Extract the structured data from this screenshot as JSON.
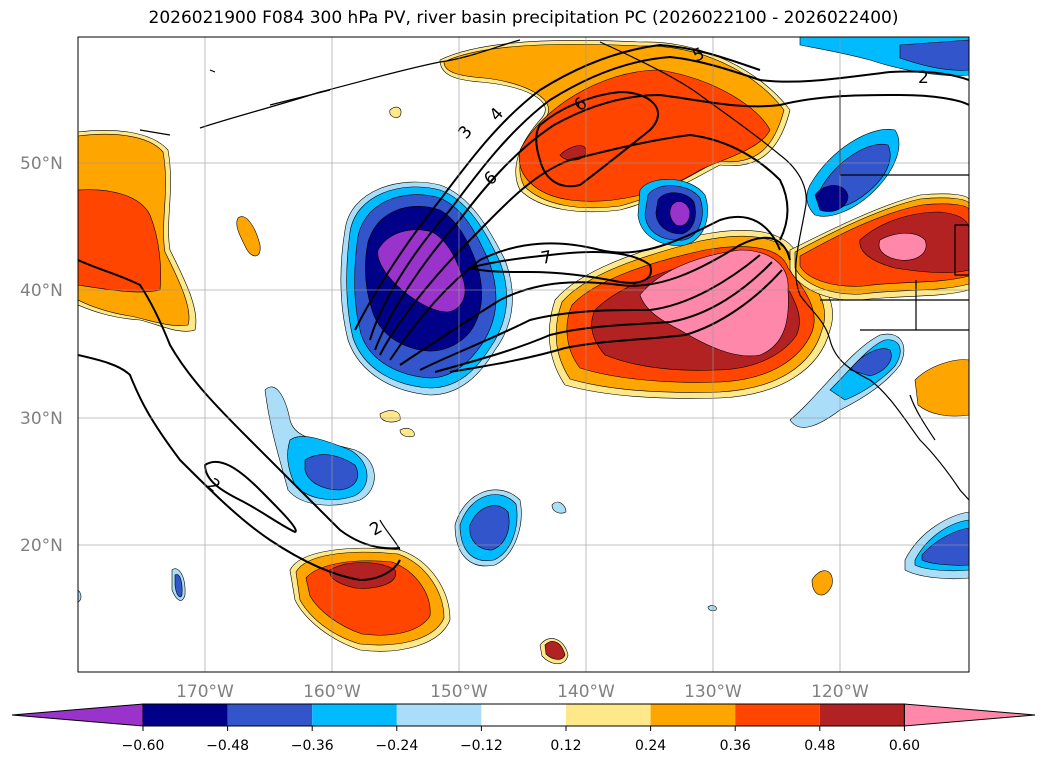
{
  "title": "2026021900 F084 300 hPa PV, river basin precipitation PC (2026022100 - 2026022400)",
  "map": {
    "lat_labels": [
      "50°N",
      "40°N",
      "30°N",
      "20°N"
    ],
    "lon_labels": [
      "170°W",
      "160°W",
      "150°W",
      "140°W",
      "130°W",
      "120°W"
    ],
    "pv_contour_labels": [
      "2",
      "3",
      "4",
      "5",
      "6",
      "6",
      "7",
      "2",
      "2"
    ]
  },
  "colorbar": {
    "colors": [
      "#9933cc",
      "#000088",
      "#3355cc",
      "#00bbff",
      "#aaddf7",
      "#ffffff",
      "#ffe88a",
      "#ffa500",
      "#ff4500",
      "#b22222",
      "#ff88aa"
    ],
    "ticks": [
      "−0.60",
      "−0.48",
      "−0.36",
      "−0.24",
      "−0.12",
      "0.12",
      "0.24",
      "0.36",
      "0.48",
      "0.60"
    ]
  }
}
